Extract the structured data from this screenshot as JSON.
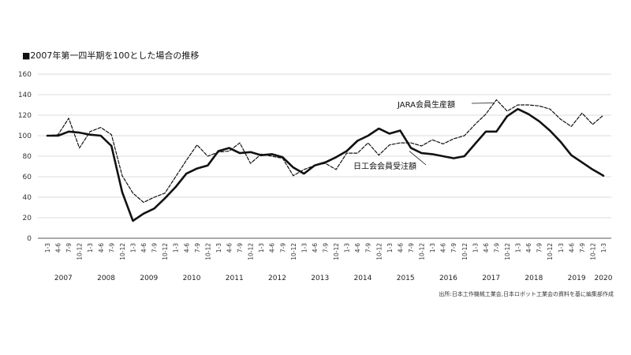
{
  "chart_data": {
    "type": "line",
    "title": "■2007年第一四半期を100とした場合の推移",
    "source": "出所:日本工作機械工業会,日本ロボット工業会の資料を基に編集部作成",
    "ylim": [
      0,
      160
    ],
    "yticks": [
      0,
      20,
      40,
      60,
      80,
      100,
      120,
      140,
      160
    ],
    "grid": true,
    "x": [
      "1-3",
      "4-6",
      "7-9",
      "10-12",
      "1-3",
      "4-6",
      "7-9",
      "10-12",
      "1-3",
      "4-6",
      "7-9",
      "10-12",
      "1-3",
      "4-6",
      "7-9",
      "10-12",
      "1-3",
      "4-6",
      "7-9",
      "10-12",
      "1-3",
      "4-6",
      "7-9",
      "10-12",
      "1-3",
      "4-6",
      "7-9",
      "10-12",
      "1-3",
      "4-6",
      "7-9",
      "10-12",
      "1-3",
      "4-6",
      "7-9",
      "10-12",
      "1-3",
      "4-6",
      "7-9",
      "10-12",
      "1-3",
      "4-6",
      "7-9",
      "10-12",
      "1-3",
      "4-6",
      "7-9",
      "10-12",
      "1-3",
      "4-6",
      "7-9",
      "10-12",
      "1-3"
    ],
    "years": [
      {
        "label": "2007",
        "start": 0,
        "end": 3
      },
      {
        "label": "2008",
        "start": 4,
        "end": 7
      },
      {
        "label": "2009",
        "start": 8,
        "end": 11
      },
      {
        "label": "2010",
        "start": 12,
        "end": 15
      },
      {
        "label": "2011",
        "start": 16,
        "end": 19
      },
      {
        "label": "2012",
        "start": 20,
        "end": 23
      },
      {
        "label": "2013",
        "start": 24,
        "end": 27
      },
      {
        "label": "2014",
        "start": 28,
        "end": 31
      },
      {
        "label": "2015",
        "start": 32,
        "end": 35
      },
      {
        "label": "2016",
        "start": 36,
        "end": 39
      },
      {
        "label": "2017",
        "start": 40,
        "end": 43
      },
      {
        "label": "2018",
        "start": 44,
        "end": 47
      },
      {
        "label": "2019",
        "start": 48,
        "end": 51
      },
      {
        "label": "2020",
        "start": 52,
        "end": 52
      }
    ],
    "series": [
      {
        "name": "JARA会員生産額",
        "style": "dashed",
        "color": "#111111",
        "values": [
          100,
          101,
          117,
          88,
          104,
          108,
          101,
          61,
          44,
          35,
          40,
          44,
          60,
          76,
          91,
          80,
          84,
          85,
          93,
          73,
          82,
          80,
          78,
          61,
          67,
          71,
          73,
          67,
          83,
          83,
          93,
          81,
          91,
          93,
          93,
          90,
          96,
          92,
          97,
          100,
          111,
          121,
          135,
          124,
          130,
          130,
          129,
          126,
          116,
          109,
          122,
          111,
          120
        ]
      },
      {
        "name": "日工会会員受注額",
        "style": "solid",
        "color": "#111111",
        "values": [
          100,
          100,
          104,
          103,
          101,
          100,
          90,
          45,
          17,
          24,
          29,
          39,
          50,
          63,
          68,
          71,
          85,
          88,
          83,
          84,
          81,
          82,
          79,
          69,
          63,
          71,
          74,
          79,
          85,
          95,
          100,
          107,
          102,
          105,
          88,
          83,
          82,
          80,
          78,
          80,
          92,
          104,
          104,
          119,
          126,
          121,
          114,
          105,
          94,
          81,
          74,
          67,
          61
        ]
      }
    ]
  }
}
